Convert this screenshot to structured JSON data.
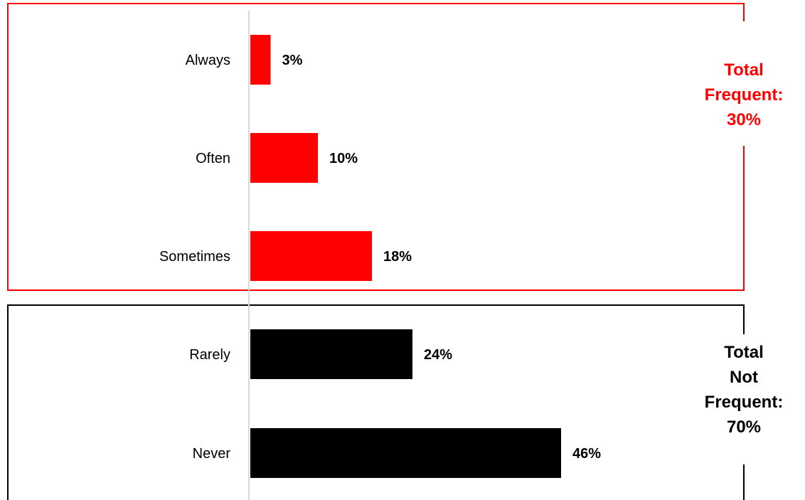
{
  "chart_data": {
    "type": "bar",
    "orientation": "horizontal",
    "categories": [
      "Always",
      "Often",
      "Sometimes",
      "Rarely",
      "Never"
    ],
    "values": [
      3,
      10,
      18,
      24,
      46
    ],
    "value_labels": [
      "3%",
      "10%",
      "18%",
      "24%",
      "46%"
    ],
    "bar_colors": [
      "#ff0000",
      "#ff0000",
      "#ff0000",
      "#000000",
      "#000000"
    ],
    "groups": [
      {
        "categories": [
          "Always",
          "Often",
          "Sometimes"
        ],
        "box_color": "#ff0000",
        "label_lines": [
          "Total",
          "Frequent:",
          "30%"
        ]
      },
      {
        "categories": [
          "Rarely",
          "Never"
        ],
        "box_color": "#000000",
        "label_lines": [
          "Total",
          "Not",
          "Frequent:",
          "70%"
        ]
      }
    ],
    "title": "",
    "xlabel": "",
    "ylabel": "",
    "xlim": [
      0,
      50
    ],
    "grid": false
  }
}
